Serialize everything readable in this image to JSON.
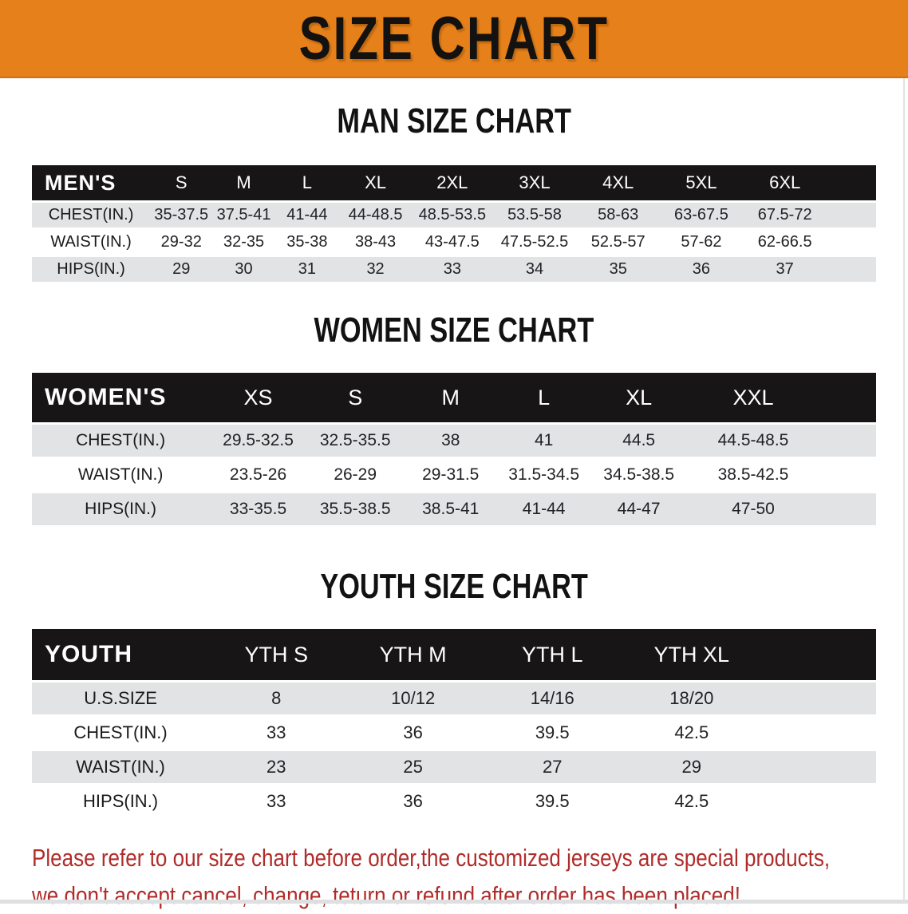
{
  "banner": {
    "title": "SIZE CHART"
  },
  "colors": {
    "accent_orange": "#E5801A",
    "header_black": "#171515",
    "stripe_gray": "#E2E3E5",
    "note_red": "#B02C2A"
  },
  "men": {
    "section_title": "MAN SIZE CHART",
    "corner_label": "MEN'S",
    "columns": [
      "S",
      "M",
      "L",
      "XL",
      "2XL",
      "3XL",
      "4XL",
      "5XL",
      "6XL"
    ],
    "rows": [
      {
        "label": "CHEST(IN.)",
        "values": [
          "35-37.5",
          "37.5-41",
          "41-44",
          "44-48.5",
          "48.5-53.5",
          "53.5-58",
          "58-63",
          "63-67.5",
          "67.5-72"
        ]
      },
      {
        "label": "WAIST(IN.)",
        "values": [
          "29-32",
          "32-35",
          "35-38",
          "38-43",
          "43-47.5",
          "47.5-52.5",
          "52.5-57",
          "57-62",
          "62-66.5"
        ]
      },
      {
        "label": "HIPS(IN.)",
        "values": [
          "29",
          "30",
          "31",
          "32",
          "33",
          "34",
          "35",
          "36",
          "37"
        ]
      }
    ]
  },
  "women": {
    "section_title": "WOMEN SIZE CHART",
    "corner_label": "WOMEN'S",
    "columns": [
      "XS",
      "S",
      "M",
      "L",
      "XL",
      "XXL"
    ],
    "rows": [
      {
        "label": "CHEST(IN.)",
        "values": [
          "29.5-32.5",
          "32.5-35.5",
          "38",
          "41",
          "44.5",
          "44.5-48.5"
        ]
      },
      {
        "label": "WAIST(IN.)",
        "values": [
          "23.5-26",
          "26-29",
          "29-31.5",
          "31.5-34.5",
          "34.5-38.5",
          "38.5-42.5"
        ]
      },
      {
        "label": "HIPS(IN.)",
        "values": [
          "33-35.5",
          "35.5-38.5",
          "38.5-41",
          "41-44",
          "44-47",
          "47-50"
        ]
      }
    ]
  },
  "youth": {
    "section_title": "YOUTH SIZE CHART",
    "corner_label": "YOUTH",
    "columns": [
      "YTH S",
      "YTH M",
      "YTH L",
      "YTH XL"
    ],
    "rows": [
      {
        "label": "U.S.SIZE",
        "values": [
          "8",
          "10/12",
          "14/16",
          "18/20"
        ]
      },
      {
        "label": "CHEST(IN.)",
        "values": [
          "33",
          "36",
          "39.5",
          "42.5"
        ]
      },
      {
        "label": "WAIST(IN.)",
        "values": [
          "23",
          "25",
          "27",
          "29"
        ]
      },
      {
        "label": "HIPS(IN.)",
        "values": [
          "33",
          "36",
          "39.5",
          "42.5"
        ]
      }
    ]
  },
  "note": {
    "line1": "Please refer to our size chart before order,the customized jerseys are special products,",
    "line2": "we don't accept cancel, change, teturn or refund after order has been placed!"
  }
}
